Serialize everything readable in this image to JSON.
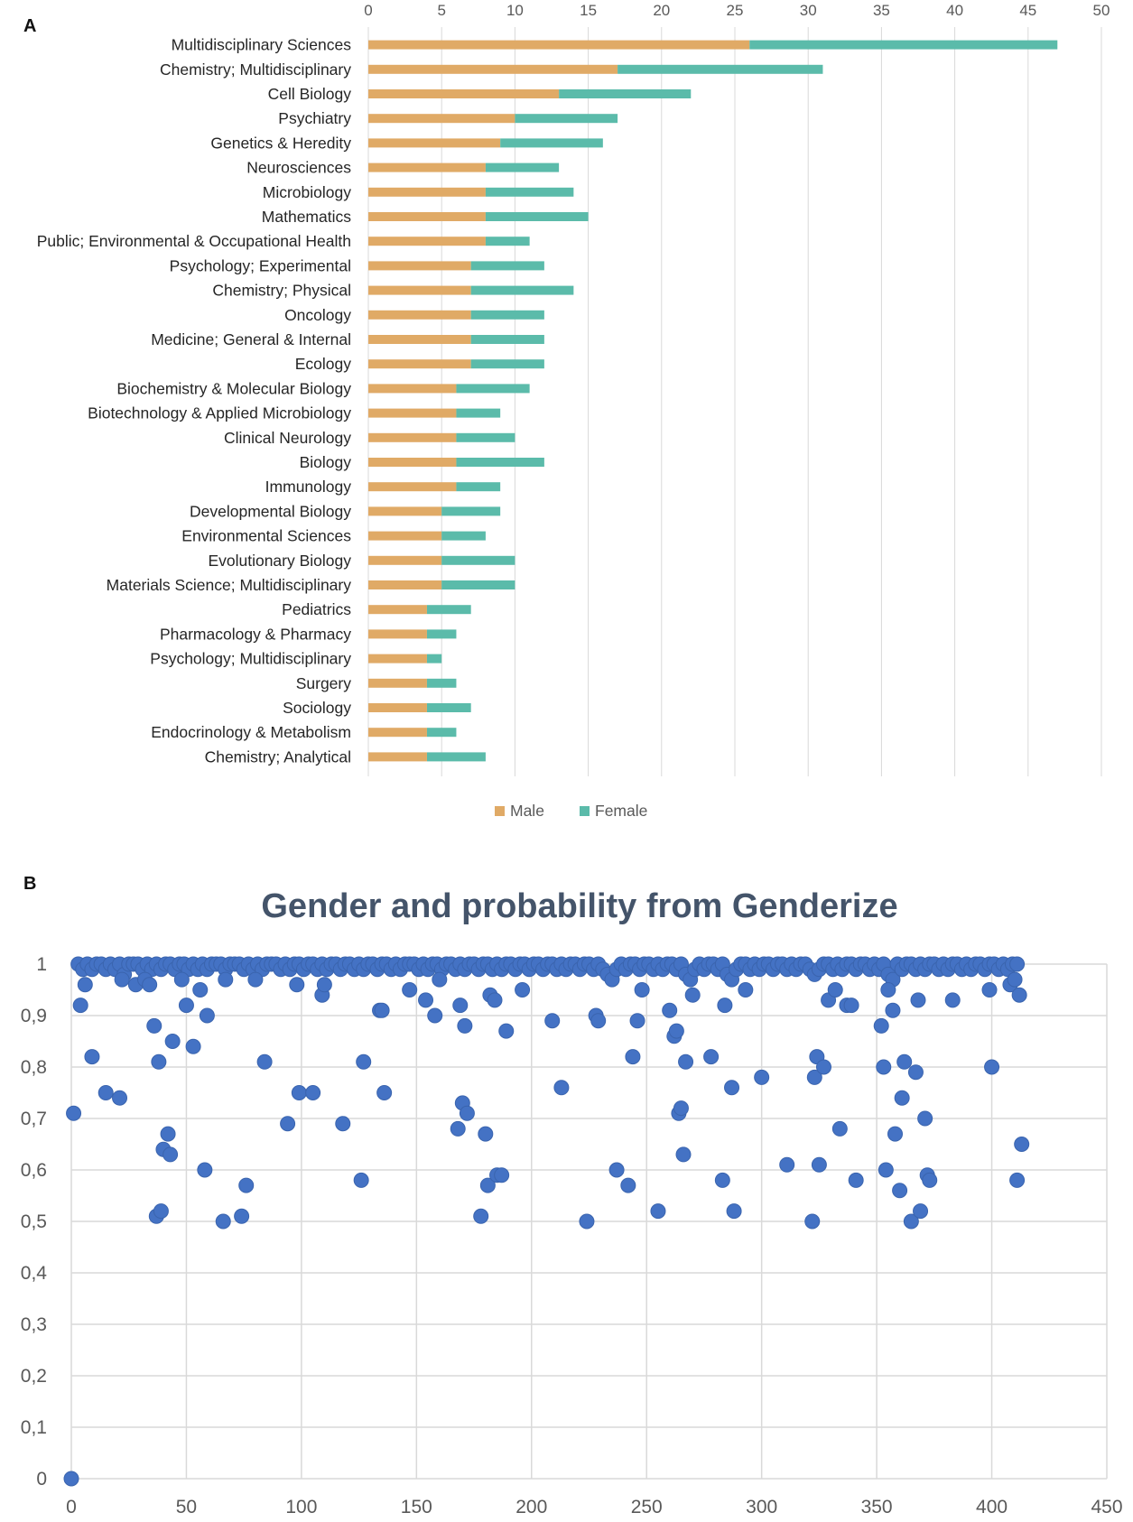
{
  "panels": {
    "a_label": "A",
    "b_label": "B"
  },
  "colors": {
    "male": "#E0AA66",
    "female": "#5BBBAA",
    "points": "#4472C4",
    "grid": "#D9D9D9",
    "axis_text": "#595959",
    "title": "#44546A"
  },
  "chart_data": [
    {
      "type": "bar",
      "stacked": true,
      "orientation": "horizontal",
      "title": "",
      "categories": [
        "Multidisciplinary Sciences",
        "Chemistry; Multidisciplinary",
        "Cell Biology",
        "Psychiatry",
        "Genetics & Heredity",
        "Neurosciences",
        "Microbiology",
        "Mathematics",
        "Public; Environmental & Occupational Health",
        "Psychology; Experimental",
        "Chemistry; Physical",
        "Oncology",
        "Medicine; General & Internal",
        "Ecology",
        "Biochemistry & Molecular Biology",
        "Biotechnology & Applied Microbiology",
        "Clinical Neurology",
        "Biology",
        "Immunology",
        "Developmental Biology",
        "Environmental Sciences",
        "Evolutionary Biology",
        "Materials Science; Multidisciplinary",
        "Pediatrics",
        "Pharmacology & Pharmacy",
        "Psychology; Multidisciplinary",
        "Surgery",
        "Sociology",
        "Endocrinology & Metabolism",
        "Chemistry; Analytical"
      ],
      "series": [
        {
          "name": "Male",
          "values": [
            26,
            17,
            13,
            10,
            9,
            8,
            8,
            8,
            8,
            7,
            7,
            7,
            7,
            7,
            6,
            6,
            6,
            6,
            6,
            5,
            5,
            5,
            5,
            4,
            4,
            4,
            4,
            4,
            4,
            4
          ]
        },
        {
          "name": "Female",
          "values": [
            21,
            14,
            9,
            7,
            7,
            5,
            6,
            7,
            3,
            5,
            7,
            5,
            5,
            5,
            5,
            3,
            4,
            6,
            3,
            4,
            3,
            5,
            5,
            3,
            2,
            1,
            2,
            3,
            2,
            4
          ]
        }
      ],
      "xlim": [
        0,
        50
      ],
      "xticks": [
        "0",
        "5",
        "10",
        "15",
        "20",
        "25",
        "30",
        "35",
        "40",
        "45",
        "50"
      ],
      "legend": "bottom"
    },
    {
      "type": "scatter",
      "title": "Gender and probability from Genderize",
      "xlim": [
        0,
        450
      ],
      "ylim": [
        0,
        1
      ],
      "xticks": [
        "0",
        "50",
        "100",
        "150",
        "200",
        "250",
        "300",
        "350",
        "400",
        "450"
      ],
      "yticks": [
        "0",
        "0,1",
        "0,2",
        "0,3",
        "0,4",
        "0,5",
        "0,6",
        "0,7",
        "0,8",
        "0,9",
        "1"
      ],
      "points_high": [
        [
          3,
          1
        ],
        [
          5,
          0.99
        ],
        [
          7,
          1
        ],
        [
          9,
          0.99
        ],
        [
          11,
          1
        ],
        [
          13,
          1
        ],
        [
          15,
          0.99
        ],
        [
          17,
          1
        ],
        [
          19,
          0.99
        ],
        [
          21,
          1
        ],
        [
          23,
          0.98
        ],
        [
          25,
          1
        ],
        [
          27,
          1
        ],
        [
          29,
          1
        ],
        [
          31,
          0.99
        ],
        [
          33,
          1
        ],
        [
          35,
          0.99
        ],
        [
          37,
          1
        ],
        [
          39,
          0.99
        ],
        [
          41,
          1
        ],
        [
          43,
          1
        ],
        [
          45,
          0.99
        ],
        [
          47,
          1
        ],
        [
          49,
          1
        ],
        [
          51,
          0.99
        ],
        [
          53,
          1
        ],
        [
          55,
          0.99
        ],
        [
          57,
          1
        ],
        [
          59,
          0.99
        ],
        [
          61,
          1
        ],
        [
          63,
          1
        ],
        [
          65,
          1
        ],
        [
          67,
          0.99
        ],
        [
          69,
          1
        ],
        [
          71,
          1
        ],
        [
          73,
          1
        ],
        [
          75,
          0.99
        ],
        [
          77,
          1
        ],
        [
          79,
          0.99
        ],
        [
          81,
          1
        ],
        [
          83,
          0.99
        ],
        [
          85,
          1
        ],
        [
          87,
          1
        ],
        [
          89,
          1
        ],
        [
          91,
          0.99
        ],
        [
          93,
          1
        ],
        [
          95,
          0.99
        ],
        [
          97,
          1
        ],
        [
          99,
          1
        ],
        [
          101,
          0.99
        ],
        [
          103,
          1
        ],
        [
          105,
          1
        ],
        [
          107,
          0.99
        ],
        [
          109,
          1
        ],
        [
          111,
          0.99
        ],
        [
          113,
          1
        ],
        [
          115,
          1
        ],
        [
          117,
          0.99
        ],
        [
          119,
          1
        ],
        [
          121,
          1
        ],
        [
          123,
          0.99
        ],
        [
          125,
          1
        ],
        [
          127,
          0.99
        ],
        [
          129,
          1
        ],
        [
          131,
          1
        ],
        [
          133,
          0.99
        ],
        [
          135,
          1
        ],
        [
          137,
          1
        ],
        [
          139,
          0.99
        ],
        [
          141,
          1
        ],
        [
          143,
          0.99
        ],
        [
          145,
          1
        ],
        [
          147,
          1
        ],
        [
          149,
          1
        ],
        [
          151,
          0.99
        ],
        [
          153,
          1
        ],
        [
          155,
          0.99
        ],
        [
          157,
          1
        ],
        [
          159,
          1
        ],
        [
          161,
          0.99
        ],
        [
          163,
          1
        ],
        [
          165,
          1
        ],
        [
          167,
          0.99
        ],
        [
          169,
          1
        ],
        [
          171,
          0.99
        ],
        [
          173,
          1
        ],
        [
          175,
          1
        ],
        [
          177,
          0.99
        ],
        [
          179,
          1
        ],
        [
          181,
          1
        ],
        [
          183,
          0.99
        ],
        [
          185,
          1
        ],
        [
          187,
          0.99
        ],
        [
          189,
          1
        ],
        [
          191,
          1
        ],
        [
          193,
          0.99
        ],
        [
          195,
          1
        ],
        [
          197,
          1
        ],
        [
          199,
          0.99
        ],
        [
          201,
          1
        ],
        [
          203,
          1
        ],
        [
          205,
          0.99
        ],
        [
          207,
          1
        ],
        [
          209,
          1
        ],
        [
          211,
          0.99
        ],
        [
          213,
          1
        ],
        [
          215,
          0.99
        ],
        [
          217,
          1
        ],
        [
          219,
          1
        ],
        [
          221,
          0.99
        ],
        [
          223,
          1
        ],
        [
          225,
          1
        ],
        [
          227,
          0.99
        ],
        [
          229,
          1
        ],
        [
          231,
          0.99
        ],
        [
          233,
          0.98
        ],
        [
          235,
          0.97
        ],
        [
          237,
          0.99
        ],
        [
          239,
          1
        ],
        [
          241,
          0.99
        ],
        [
          243,
          1
        ],
        [
          245,
          1
        ],
        [
          247,
          0.99
        ],
        [
          249,
          1
        ],
        [
          251,
          1
        ],
        [
          253,
          0.99
        ],
        [
          255,
          1
        ],
        [
          257,
          0.99
        ],
        [
          259,
          1
        ],
        [
          261,
          1
        ],
        [
          263,
          0.99
        ],
        [
          265,
          1
        ],
        [
          267,
          0.98
        ],
        [
          269,
          0.97
        ],
        [
          271,
          0.99
        ],
        [
          273,
          1
        ],
        [
          275,
          0.99
        ],
        [
          277,
          1
        ],
        [
          279,
          1
        ],
        [
          281,
          0.99
        ],
        [
          283,
          1
        ],
        [
          285,
          0.98
        ],
        [
          287,
          0.97
        ],
        [
          289,
          0.99
        ],
        [
          291,
          1
        ],
        [
          293,
          1
        ],
        [
          295,
          0.99
        ],
        [
          297,
          1
        ],
        [
          299,
          0.99
        ],
        [
          301,
          1
        ],
        [
          303,
          1
        ],
        [
          305,
          0.99
        ],
        [
          307,
          1
        ],
        [
          309,
          1
        ],
        [
          311,
          0.99
        ],
        [
          313,
          1
        ],
        [
          315,
          0.99
        ],
        [
          317,
          1
        ],
        [
          319,
          1
        ],
        [
          321,
          0.99
        ],
        [
          323,
          0.98
        ],
        [
          325,
          0.99
        ],
        [
          327,
          1
        ],
        [
          329,
          1
        ],
        [
          331,
          0.99
        ],
        [
          333,
          1
        ],
        [
          335,
          0.99
        ],
        [
          337,
          1
        ],
        [
          339,
          1
        ],
        [
          341,
          0.99
        ],
        [
          343,
          1
        ],
        [
          345,
          1
        ],
        [
          347,
          0.99
        ],
        [
          349,
          1
        ],
        [
          351,
          0.99
        ],
        [
          353,
          1
        ],
        [
          355,
          0.98
        ],
        [
          357,
          0.97
        ],
        [
          359,
          1
        ],
        [
          361,
          0.99
        ],
        [
          363,
          1
        ],
        [
          365,
          1
        ],
        [
          367,
          0.99
        ],
        [
          369,
          1
        ],
        [
          371,
          0.99
        ],
        [
          373,
          1
        ],
        [
          375,
          1
        ],
        [
          377,
          0.99
        ],
        [
          379,
          1
        ],
        [
          381,
          0.99
        ],
        [
          383,
          1
        ],
        [
          385,
          1
        ],
        [
          387,
          0.99
        ],
        [
          389,
          1
        ],
        [
          391,
          0.99
        ],
        [
          393,
          1
        ],
        [
          395,
          1
        ],
        [
          397,
          0.99
        ],
        [
          399,
          1
        ],
        [
          401,
          1
        ],
        [
          403,
          0.99
        ],
        [
          405,
          1
        ],
        [
          407,
          0.99
        ],
        [
          409,
          1
        ],
        [
          411,
          1
        ]
      ],
      "points": [
        [
          0,
          0
        ],
        [
          1,
          0.71
        ],
        [
          4,
          0.92
        ],
        [
          6,
          0.96
        ],
        [
          9,
          0.82
        ],
        [
          15,
          0.75
        ],
        [
          21,
          0.74
        ],
        [
          22,
          0.97
        ],
        [
          28,
          0.96
        ],
        [
          32,
          0.97
        ],
        [
          34,
          0.96
        ],
        [
          36,
          0.88
        ],
        [
          37,
          0.51
        ],
        [
          38,
          0.81
        ],
        [
          39,
          0.52
        ],
        [
          40,
          0.64
        ],
        [
          42,
          0.67
        ],
        [
          43,
          0.63
        ],
        [
          44,
          0.85
        ],
        [
          48,
          0.97
        ],
        [
          50,
          0.92
        ],
        [
          53,
          0.84
        ],
        [
          56,
          0.95
        ],
        [
          58,
          0.6
        ],
        [
          59,
          0.9
        ],
        [
          66,
          0.5
        ],
        [
          67,
          0.97
        ],
        [
          74,
          0.51
        ],
        [
          76,
          0.57
        ],
        [
          80,
          0.97
        ],
        [
          84,
          0.81
        ],
        [
          94,
          0.69
        ],
        [
          98,
          0.96
        ],
        [
          99,
          0.75
        ],
        [
          105,
          0.75
        ],
        [
          109,
          0.94
        ],
        [
          110,
          0.96
        ],
        [
          118,
          0.69
        ],
        [
          126,
          0.58
        ],
        [
          127,
          0.81
        ],
        [
          134,
          0.91
        ],
        [
          135,
          0.91
        ],
        [
          136,
          0.75
        ],
        [
          147,
          0.95
        ],
        [
          154,
          0.93
        ],
        [
          158,
          0.9
        ],
        [
          160,
          0.97
        ],
        [
          168,
          0.68
        ],
        [
          169,
          0.92
        ],
        [
          170,
          0.73
        ],
        [
          171,
          0.88
        ],
        [
          172,
          0.71
        ],
        [
          178,
          0.51
        ],
        [
          180,
          0.67
        ],
        [
          181,
          0.57
        ],
        [
          182,
          0.94
        ],
        [
          184,
          0.93
        ],
        [
          185,
          0.59
        ],
        [
          187,
          0.59
        ],
        [
          189,
          0.87
        ],
        [
          196,
          0.95
        ],
        [
          209,
          0.89
        ],
        [
          213,
          0.76
        ],
        [
          224,
          0.5
        ],
        [
          228,
          0.9
        ],
        [
          229,
          0.89
        ],
        [
          237,
          0.6
        ],
        [
          242,
          0.57
        ],
        [
          244,
          0.82
        ],
        [
          246,
          0.89
        ],
        [
          248,
          0.95
        ],
        [
          255,
          0.52
        ],
        [
          260,
          0.91
        ],
        [
          262,
          0.86
        ],
        [
          263,
          0.87
        ],
        [
          264,
          0.71
        ],
        [
          265,
          0.72
        ],
        [
          266,
          0.63
        ],
        [
          267,
          0.81
        ],
        [
          270,
          0.94
        ],
        [
          278,
          0.82
        ],
        [
          283,
          0.58
        ],
        [
          284,
          0.92
        ],
        [
          287,
          0.76
        ],
        [
          288,
          0.52
        ],
        [
          293,
          0.95
        ],
        [
          300,
          0.78
        ],
        [
          311,
          0.61
        ],
        [
          322,
          0.5
        ],
        [
          323,
          0.78
        ],
        [
          324,
          0.82
        ],
        [
          325,
          0.61
        ],
        [
          327,
          0.8
        ],
        [
          329,
          0.93
        ],
        [
          332,
          0.95
        ],
        [
          334,
          0.68
        ],
        [
          337,
          0.92
        ],
        [
          339,
          0.92
        ],
        [
          341,
          0.58
        ],
        [
          352,
          0.88
        ],
        [
          353,
          0.8
        ],
        [
          354,
          0.6
        ],
        [
          355,
          0.95
        ],
        [
          357,
          0.91
        ],
        [
          358,
          0.67
        ],
        [
          360,
          0.56
        ],
        [
          361,
          0.74
        ],
        [
          362,
          0.81
        ],
        [
          365,
          0.5
        ],
        [
          367,
          0.79
        ],
        [
          368,
          0.93
        ],
        [
          369,
          0.52
        ],
        [
          371,
          0.7
        ],
        [
          372,
          0.59
        ],
        [
          373,
          0.58
        ],
        [
          383,
          0.93
        ],
        [
          399,
          0.95
        ],
        [
          400,
          0.8
        ],
        [
          408,
          0.96
        ],
        [
          410,
          0.97
        ],
        [
          411,
          0.58
        ],
        [
          412,
          0.94
        ],
        [
          413,
          0.65
        ]
      ]
    }
  ]
}
